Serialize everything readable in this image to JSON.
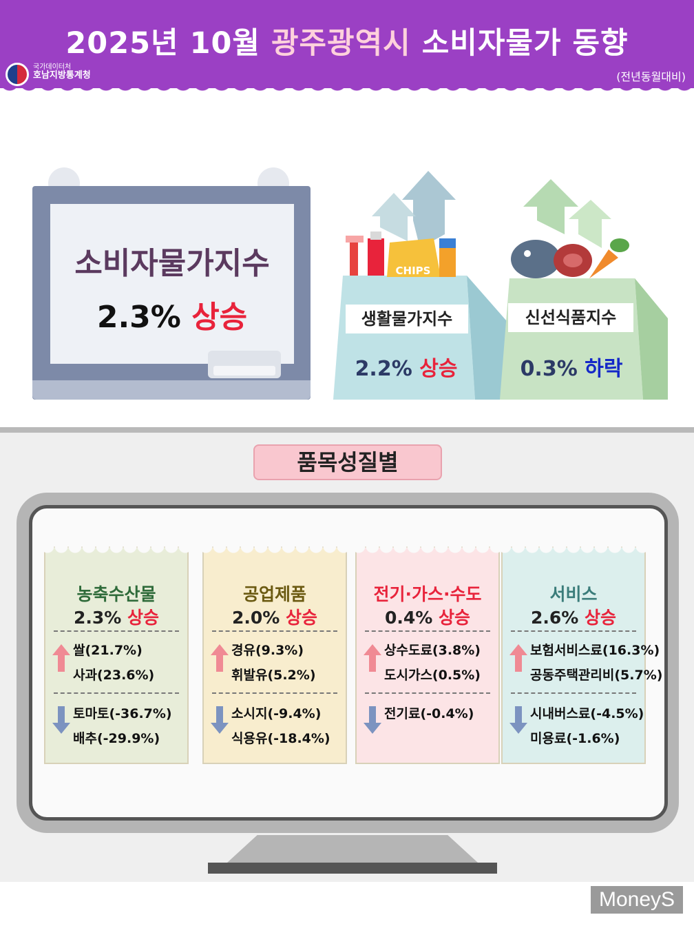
{
  "header": {
    "title_prefix": "2025년 10월 ",
    "title_highlight": "광주광역시",
    "title_suffix": " 소비자물가 동향",
    "org_line1": "국가데이터처",
    "org_line2": "호남지방통계청",
    "basis": "(전년동월대비)"
  },
  "cpi": {
    "label": "소비자물가지수",
    "value": "2.3%",
    "direction": "상승"
  },
  "living": {
    "label": "생활물가지수",
    "value": "2.2%",
    "direction": "상승",
    "chips_text": "CHIPS"
  },
  "fresh": {
    "label": "신선식품지수",
    "value": "0.3%",
    "direction": "하락"
  },
  "section_title": "품목성질별",
  "categories": [
    {
      "name": "농축수산물",
      "value": "2.3%",
      "direction": "상승",
      "name_color": "#2f6b3a",
      "bg": "#e8edd9",
      "up": [
        "쌀(21.7%)",
        "사과(23.6%)"
      ],
      "down": [
        "토마토(-36.7%)",
        "배추(-29.9%)"
      ]
    },
    {
      "name": "공업제품",
      "value": "2.0%",
      "direction": "상승",
      "name_color": "#6b5a12",
      "bg": "#f8edce",
      "up": [
        "경유(9.3%)",
        "휘발유(5.2%)"
      ],
      "down": [
        "소시지(-9.4%)",
        "식용유(-18.4%)"
      ]
    },
    {
      "name": "전기·가스·수도",
      "value": "0.4%",
      "direction": "상승",
      "name_color": "#e8233b",
      "bg": "#fce4e6",
      "up": [
        "상수도료(3.8%)",
        "도시가스(0.5%)"
      ],
      "down": [
        "전기료(-0.4%)"
      ]
    },
    {
      "name": "서비스",
      "value": "2.6%",
      "direction": "상승",
      "name_color": "#3a7c7a",
      "bg": "#dcefed",
      "up": [
        "보험서비스료(16.3%)",
        "공동주택관리비(5.7%)"
      ],
      "down": [
        "시내버스료(-4.5%)",
        "미용료(-1.6%)"
      ]
    }
  ],
  "watermark": "MoneyS"
}
